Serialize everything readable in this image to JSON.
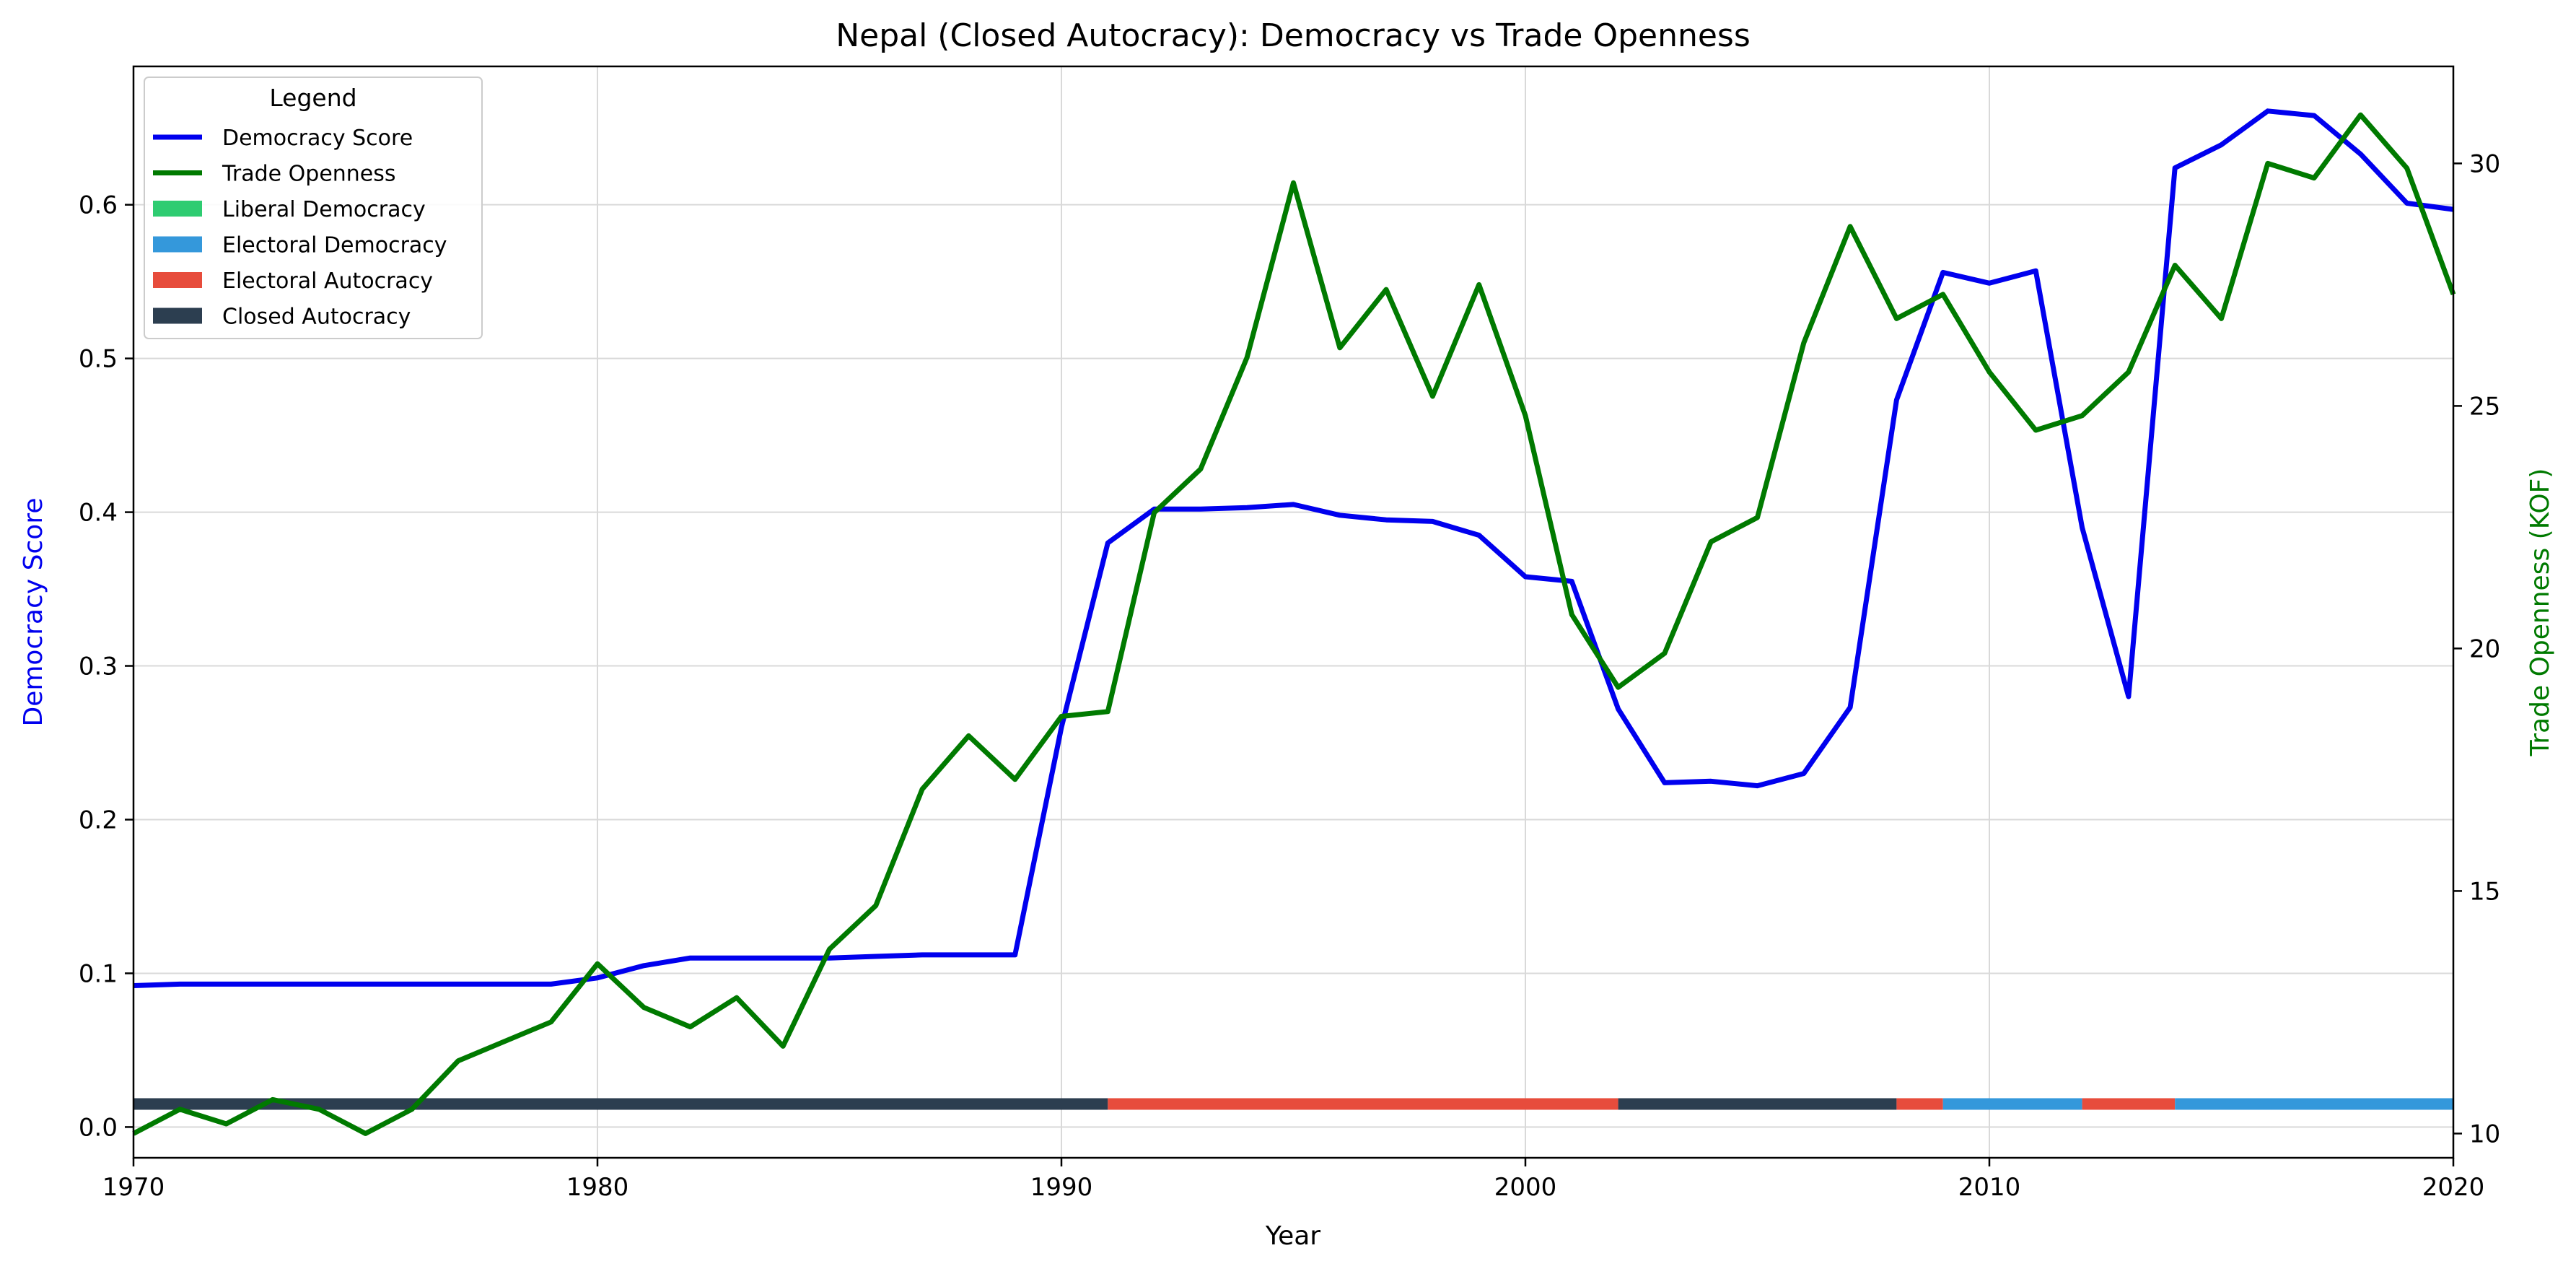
{
  "chart_data": {
    "type": "line",
    "title": "Nepal (Closed Autocracy): Democracy vs Trade Openness",
    "xlabel": "Year",
    "ylabel_left": "Democracy Score",
    "ylabel_right": "Trade Openness (KOF)",
    "xlim": [
      1970,
      2020
    ],
    "ylim_left": [
      -0.02,
      0.69
    ],
    "ylim_right": [
      9.5,
      32
    ],
    "x_ticks": [
      1970,
      1980,
      1990,
      2000,
      2010,
      2020
    ],
    "y_ticks_left": [
      0.0,
      0.1,
      0.2,
      0.3,
      0.4,
      0.5,
      0.6
    ],
    "y_ticks_left_labels": [
      "0.0",
      "0.1",
      "0.2",
      "0.3",
      "0.4",
      "0.5",
      "0.6"
    ],
    "y_ticks_right": [
      10,
      15,
      20,
      25,
      30
    ],
    "y_ticks_right_labels": [
      "10",
      "15",
      "20",
      "25",
      "30"
    ],
    "grid": true,
    "colors": {
      "democracy": "#0000ee",
      "trade": "#007a00",
      "liberal_democracy": "#2ecc71",
      "electoral_democracy": "#3498db",
      "electoral_autocracy": "#e74c3c",
      "closed_autocracy": "#2c3e50"
    },
    "x": [
      1970,
      1971,
      1972,
      1973,
      1974,
      1975,
      1976,
      1977,
      1978,
      1979,
      1980,
      1981,
      1982,
      1983,
      1984,
      1985,
      1986,
      1987,
      1988,
      1989,
      1990,
      1991,
      1992,
      1993,
      1994,
      1995,
      1996,
      1997,
      1998,
      1999,
      2000,
      2001,
      2002,
      2003,
      2004,
      2005,
      2006,
      2007,
      2008,
      2009,
      2010,
      2011,
      2012,
      2013,
      2014,
      2015,
      2016,
      2017,
      2018,
      2019,
      2020
    ],
    "series": [
      {
        "name": "Democracy Score",
        "axis": "left",
        "values": [
          0.092,
          0.093,
          0.093,
          0.093,
          0.093,
          0.093,
          0.093,
          0.093,
          0.093,
          0.093,
          0.097,
          0.105,
          0.11,
          0.11,
          0.11,
          0.11,
          0.111,
          0.112,
          0.112,
          0.112,
          0.26,
          0.38,
          0.402,
          0.402,
          0.403,
          0.405,
          0.398,
          0.395,
          0.394,
          0.385,
          0.358,
          0.355,
          0.272,
          0.224,
          0.225,
          0.222,
          0.23,
          0.273,
          0.473,
          0.556,
          0.549,
          0.557,
          0.39,
          0.28,
          0.624,
          0.639,
          0.661,
          0.658,
          0.633,
          0.601,
          0.597
        ]
      },
      {
        "name": "Trade Openness",
        "axis": "right",
        "values": [
          10.0,
          10.5,
          10.2,
          10.7,
          10.5,
          10.0,
          10.5,
          11.5,
          11.9,
          12.3,
          13.5,
          12.6,
          12.2,
          12.8,
          11.8,
          13.8,
          14.7,
          17.1,
          18.2,
          17.3,
          18.6,
          18.7,
          22.8,
          23.7,
          26.0,
          29.6,
          26.2,
          27.4,
          25.2,
          27.5,
          24.8,
          20.7,
          19.2,
          19.9,
          22.2,
          22.7,
          26.3,
          28.7,
          26.8,
          27.3,
          25.7,
          24.5,
          24.8,
          25.7,
          27.9,
          26.8,
          30.0,
          29.7,
          31.0,
          29.9,
          27.3
        ]
      }
    ],
    "regime_bands": [
      {
        "start": 1970,
        "end": 1991,
        "regime": "Closed Autocracy"
      },
      {
        "start": 1991,
        "end": 2002,
        "regime": "Electoral Autocracy"
      },
      {
        "start": 2002,
        "end": 2008,
        "regime": "Closed Autocracy"
      },
      {
        "start": 2008,
        "end": 2009,
        "regime": "Electoral Autocracy"
      },
      {
        "start": 2009,
        "end": 2012,
        "regime": "Electoral Democracy"
      },
      {
        "start": 2012,
        "end": 2014,
        "regime": "Electoral Autocracy"
      },
      {
        "start": 2014,
        "end": 2020,
        "regime": "Electoral Democracy"
      }
    ],
    "regime_band_level": 0.015,
    "legend": {
      "title": "Legend",
      "placement": "top-left",
      "entries": [
        {
          "label": "Democracy Score",
          "kind": "line",
          "color_key": "democracy"
        },
        {
          "label": "Trade Openness",
          "kind": "line",
          "color_key": "trade"
        },
        {
          "label": "Liberal Democracy",
          "kind": "patch",
          "color_key": "liberal_democracy"
        },
        {
          "label": "Electoral Democracy",
          "kind": "patch",
          "color_key": "electoral_democracy"
        },
        {
          "label": "Electoral Autocracy",
          "kind": "patch",
          "color_key": "electoral_autocracy"
        },
        {
          "label": "Closed Autocracy",
          "kind": "patch",
          "color_key": "closed_autocracy"
        }
      ]
    }
  }
}
